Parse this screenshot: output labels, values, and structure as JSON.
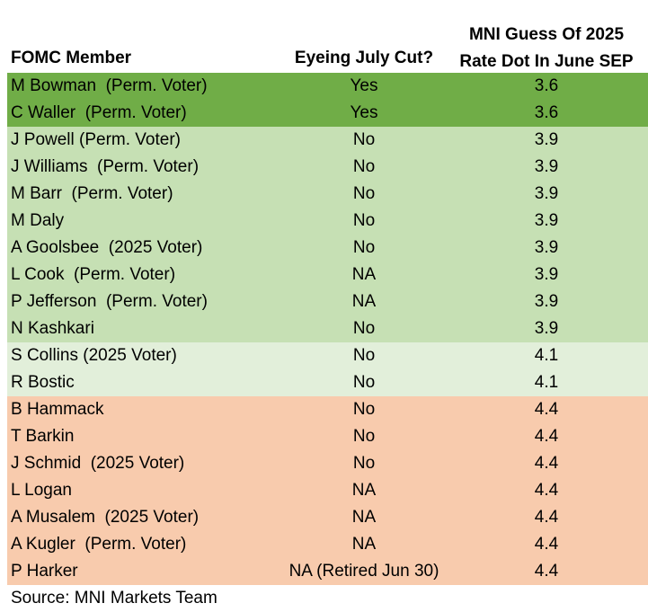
{
  "header": {
    "member": "FOMC Member",
    "cut": "Eyeing July Cut?",
    "dot_line1": "MNI Guess Of 2025",
    "dot_line2": "Rate Dot In June SEP"
  },
  "rows": [
    {
      "member": "M Bowman  (Perm. Voter)",
      "cut": "Yes",
      "dot": "3.6",
      "color": "#70ad47"
    },
    {
      "member": "C Waller  (Perm. Voter)",
      "cut": "Yes",
      "dot": "3.6",
      "color": "#70ad47"
    },
    {
      "member": "J Powell (Perm. Voter)",
      "cut": "No",
      "dot": "3.9",
      "color": "#c6e0b4"
    },
    {
      "member": "J Williams  (Perm. Voter)",
      "cut": "No",
      "dot": "3.9",
      "color": "#c6e0b4"
    },
    {
      "member": "M Barr  (Perm. Voter)",
      "cut": "No",
      "dot": "3.9",
      "color": "#c6e0b4"
    },
    {
      "member": "M Daly",
      "cut": "No",
      "dot": "3.9",
      "color": "#c6e0b4"
    },
    {
      "member": "A Goolsbee  (2025 Voter)",
      "cut": "No",
      "dot": "3.9",
      "color": "#c6e0b4"
    },
    {
      "member": "L Cook  (Perm. Voter)",
      "cut": "NA",
      "dot": "3.9",
      "color": "#c6e0b4"
    },
    {
      "member": "P Jefferson  (Perm. Voter)",
      "cut": "NA",
      "dot": "3.9",
      "color": "#c6e0b4"
    },
    {
      "member": "N Kashkari",
      "cut": "No",
      "dot": "3.9",
      "color": "#c6e0b4"
    },
    {
      "member": "S Collins (2025 Voter)",
      "cut": "No",
      "dot": "4.1",
      "color": "#e2efda"
    },
    {
      "member": "R Bostic",
      "cut": "No",
      "dot": "4.1",
      "color": "#e2efda"
    },
    {
      "member": "B Hammack",
      "cut": "No",
      "dot": "4.4",
      "color": "#f8cbad"
    },
    {
      "member": "T Barkin",
      "cut": "No",
      "dot": "4.4",
      "color": "#f8cbad"
    },
    {
      "member": "J Schmid  (2025 Voter)",
      "cut": "No",
      "dot": "4.4",
      "color": "#f8cbad"
    },
    {
      "member": "L Logan",
      "cut": "NA",
      "dot": "4.4",
      "color": "#f8cbad"
    },
    {
      "member": "A Musalem  (2025 Voter)",
      "cut": "NA",
      "dot": "4.4",
      "color": "#f8cbad"
    },
    {
      "member": "A Kugler  (Perm. Voter)",
      "cut": "NA",
      "dot": "4.4",
      "color": "#f8cbad"
    },
    {
      "member": "P Harker",
      "cut": "NA (Retired Jun 30)",
      "dot": "4.4",
      "color": "#f8cbad"
    }
  ],
  "source": "Source: MNI Markets Team"
}
